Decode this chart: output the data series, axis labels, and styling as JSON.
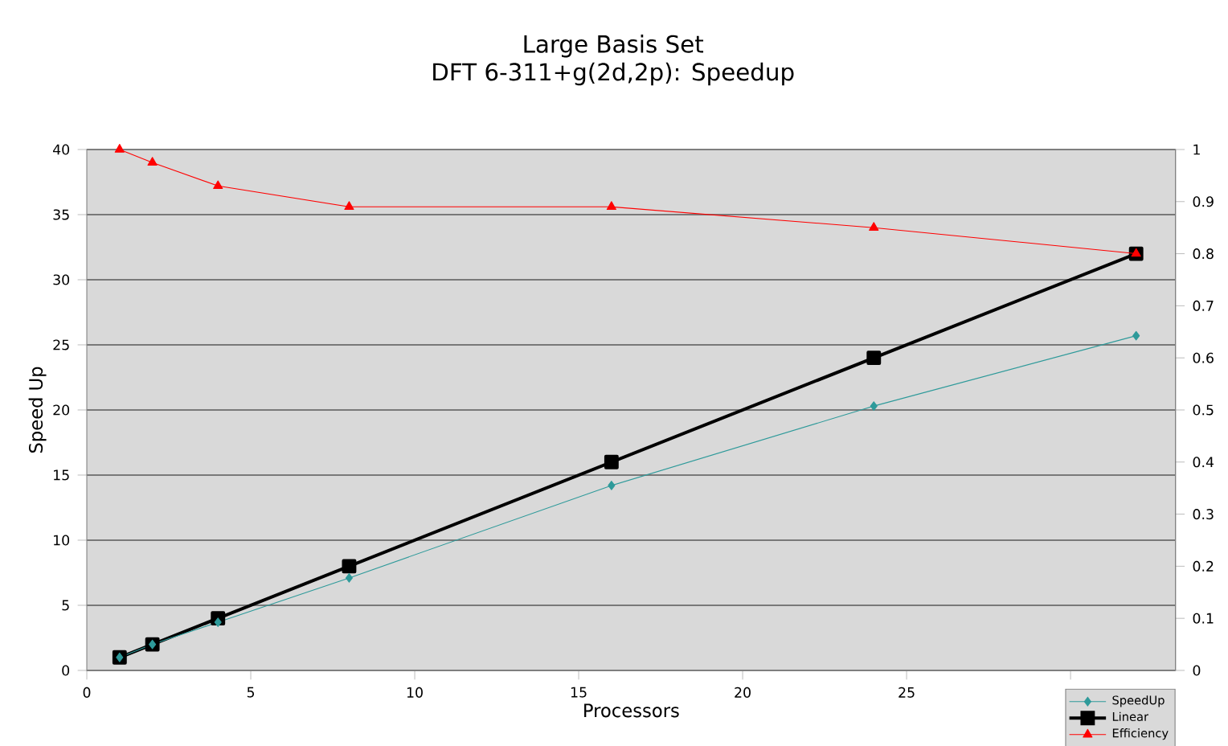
{
  "chart_data": {
    "type": "line",
    "title": "Large Basis Set",
    "subtitle": "DFT 6-311+g(2d,2p): Speedup",
    "xlabel": "Processors",
    "ylabel": "Speed Up",
    "xlim": [
      0,
      33.2
    ],
    "xticks": [
      0,
      5,
      10,
      15,
      20,
      25,
      {
        "value": 30,
        "label": null
      }
    ],
    "ylim": [
      0,
      40
    ],
    "yticks": [
      0,
      5,
      10,
      15,
      20,
      25,
      30,
      35,
      40
    ],
    "y2lim": [
      0,
      1
    ],
    "y2ticks": [
      0,
      0.1,
      0.2,
      0.3,
      0.4,
      0.5,
      0.6,
      0.7,
      0.8,
      0.9,
      1
    ],
    "grid": "y",
    "legend": "bottom right",
    "series": [
      {
        "name": "SpeedUp",
        "color": "#2e9a9a",
        "marker": "diamond",
        "x": [
          1,
          2,
          4,
          8,
          16,
          24,
          32
        ],
        "values": [
          1,
          2,
          3.7,
          7.1,
          14.2,
          20.3,
          25.7
        ]
      },
      {
        "name": "Linear",
        "color": "#000000",
        "marker": "square",
        "x": [
          1,
          2,
          4,
          8,
          16,
          24,
          32
        ],
        "values": [
          1,
          2,
          4,
          8,
          16,
          24,
          32
        ]
      },
      {
        "name": "Efficiency",
        "color": "#ff0000",
        "marker": "triangle",
        "axis": "y2",
        "x": [
          1,
          2,
          4,
          8,
          16,
          24,
          32
        ],
        "values": [
          1,
          0.975,
          0.93,
          0.89,
          0.89,
          0.85,
          0.8
        ]
      }
    ]
  }
}
